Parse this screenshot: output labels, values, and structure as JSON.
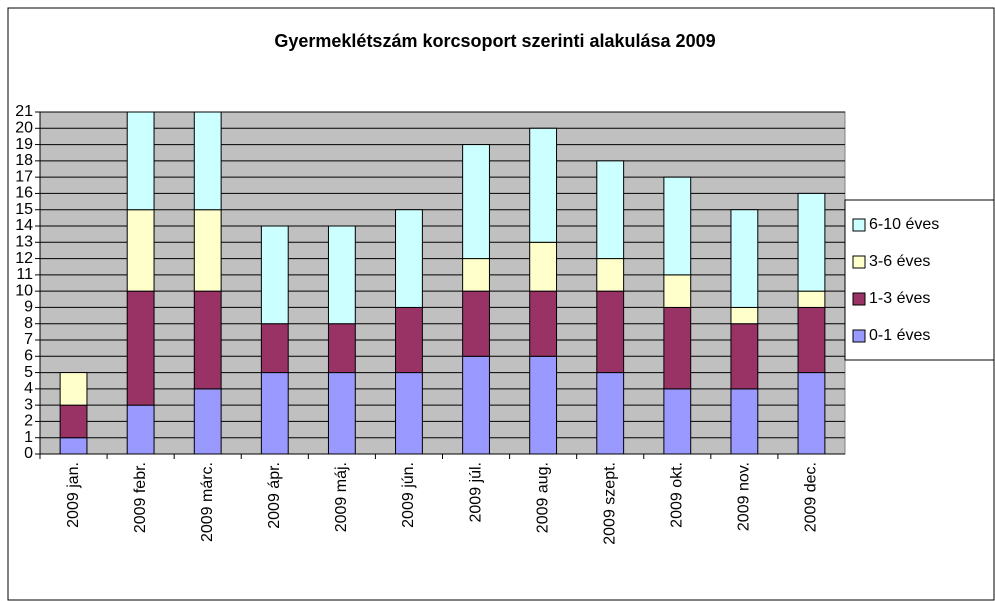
{
  "chart_data": {
    "type": "stacked_bar",
    "title": "Gyermeklétszám korcsoport szerinti alakulása 2009",
    "categories": [
      "2009 jan.",
      "2009 febr.",
      "2009 márc.",
      "2009 ápr.",
      "2009 máj.",
      "2009 jún.",
      "2009 júl.",
      "2009 aug.",
      "2009 szept.",
      "2009 okt.",
      "2009 nov.",
      "2009 dec."
    ],
    "series": [
      {
        "name": "0-1 éves",
        "color": "#9999ff",
        "values": [
          1,
          3,
          4,
          5,
          5,
          5,
          6,
          6,
          5,
          4,
          4,
          5
        ]
      },
      {
        "name": "1-3 éves",
        "color": "#993366",
        "values": [
          2,
          7,
          6,
          3,
          3,
          4,
          4,
          4,
          5,
          5,
          4,
          4
        ]
      },
      {
        "name": "3-6 éves",
        "color": "#ffffcc",
        "values": [
          2,
          5,
          5,
          0,
          0,
          0,
          2,
          3,
          2,
          2,
          1,
          1
        ]
      },
      {
        "name": "6-10 éves",
        "color": "#ccffff",
        "values": [
          0,
          6,
          6,
          6,
          6,
          6,
          7,
          7,
          6,
          6,
          6,
          6
        ]
      }
    ],
    "ylim": [
      0,
      21
    ],
    "yticks": [
      0,
      1,
      2,
      3,
      4,
      5,
      6,
      7,
      8,
      9,
      10,
      11,
      12,
      13,
      14,
      15,
      16,
      17,
      18,
      19,
      20,
      21
    ],
    "grid": true,
    "legend": "right",
    "plot_background": "#c0c0c0"
  }
}
